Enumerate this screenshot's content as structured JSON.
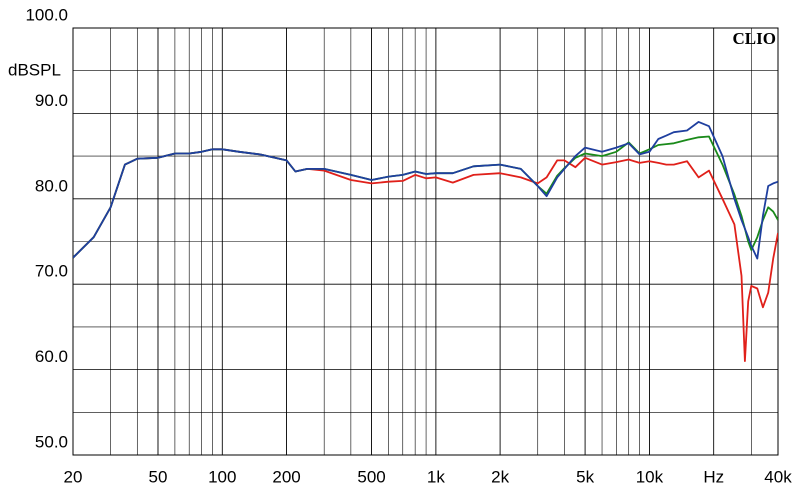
{
  "chart_data": {
    "type": "line",
    "title": "CLIO",
    "ylabel": "dBSPL",
    "xscale": "log",
    "grid": true,
    "x": [
      20,
      25,
      30,
      35,
      40,
      50,
      60,
      70,
      80,
      90,
      100,
      120,
      150,
      200,
      220,
      250,
      300,
      400,
      500,
      600,
      700,
      800,
      900,
      1000,
      1200,
      1500,
      2000,
      2500,
      3000,
      3300,
      3700,
      4000,
      4500,
      5000,
      6000,
      7000,
      8000,
      9000,
      10000,
      11000,
      12000,
      13000,
      15000,
      17000,
      19000,
      22000,
      25000,
      27000,
      28000,
      29000,
      30000,
      32000,
      34000,
      36000,
      38000,
      40000
    ],
    "series": [
      {
        "color": "#e0201a",
        "values": [
          73.1,
          75.5,
          79,
          84,
          84.7,
          84.8,
          85.3,
          85.3,
          85.5,
          85.8,
          85.8,
          85.5,
          85.2,
          84.5,
          83.2,
          83.5,
          83.3,
          82.2,
          81.8,
          82.0,
          82.1,
          82.8,
          82.4,
          82.5,
          81.9,
          82.8,
          83.0,
          82.5,
          81.8,
          82.5,
          84.5,
          84.5,
          83.7,
          84.8,
          84.0,
          84.3,
          84.6,
          84.2,
          84.4,
          84.2,
          84.0,
          84.0,
          84.4,
          82.5,
          83.3,
          80.0,
          77.0,
          71.0,
          61.0,
          68.0,
          69.8,
          69.5,
          67.3,
          69.0,
          73.0,
          76.0
        ]
      },
      {
        "color": "#1a8a1a",
        "values": [
          73.1,
          75.5,
          79,
          84,
          84.7,
          84.8,
          85.3,
          85.3,
          85.5,
          85.8,
          85.8,
          85.5,
          85.2,
          84.5,
          83.2,
          83.5,
          83.5,
          82.8,
          82.2,
          82.6,
          82.8,
          83.2,
          82.9,
          83.0,
          83.0,
          83.8,
          84.0,
          83.5,
          81.5,
          80.6,
          82.7,
          83.6,
          84.8,
          85.3,
          85.0,
          85.5,
          86.6,
          85.3,
          85.8,
          86.3,
          86.4,
          86.5,
          86.9,
          87.2,
          87.3,
          84.0,
          80.5,
          78.0,
          76.5,
          75.0,
          74.0,
          75.5,
          77.5,
          79.0,
          78.5,
          77.5
        ]
      },
      {
        "color": "#1f3f9f",
        "values": [
          73.1,
          75.5,
          79,
          84,
          84.7,
          84.8,
          85.3,
          85.3,
          85.5,
          85.8,
          85.8,
          85.5,
          85.2,
          84.5,
          83.2,
          83.5,
          83.5,
          82.8,
          82.2,
          82.6,
          82.8,
          83.2,
          82.9,
          83.0,
          83.0,
          83.8,
          84.0,
          83.5,
          81.5,
          80.3,
          82.5,
          83.5,
          85.0,
          86.0,
          85.5,
          86.0,
          86.5,
          85.2,
          85.5,
          87.0,
          87.4,
          87.8,
          88.0,
          89.0,
          88.5,
          85.0,
          80.0,
          77.5,
          76.5,
          75.5,
          74.5,
          73.0,
          78.0,
          81.5,
          81.8,
          82.0
        ]
      }
    ],
    "xlim": [
      20,
      40000
    ],
    "xticks": [
      20,
      50,
      100,
      200,
      500,
      {
        "value": 1000,
        "label": "1k"
      },
      {
        "value": 2000,
        "label": "2k"
      },
      {
        "value": 5000,
        "label": "5k"
      },
      {
        "value": 10000,
        "label": "10k"
      },
      {
        "value": 20000,
        "label": "Hz"
      },
      {
        "value": 40000,
        "label": "40k"
      }
    ],
    "ylim": [
      50,
      100
    ],
    "yticks": [
      {
        "value": 50,
        "label": "50.0"
      },
      {
        "value": 60,
        "label": "60.0"
      },
      {
        "value": 70,
        "label": "70.0"
      },
      {
        "value": 80,
        "label": "80.0"
      },
      {
        "value": 90,
        "label": "90.0"
      },
      {
        "value": 100,
        "label": "100.0"
      }
    ]
  }
}
